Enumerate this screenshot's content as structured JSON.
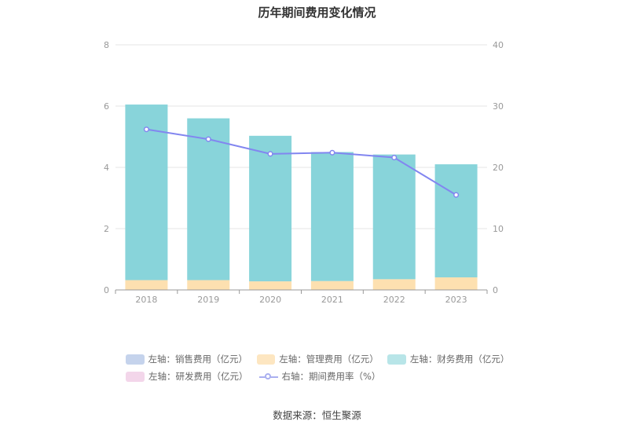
{
  "chart_data": {
    "type": "bar",
    "title": "历年期间费用变化情况",
    "categories": [
      "2018",
      "2019",
      "2020",
      "2021",
      "2022",
      "2023"
    ],
    "left_axis": {
      "min": 0,
      "max": 8,
      "ticks": [
        "0",
        "2",
        "4",
        "6",
        "8"
      ]
    },
    "right_axis": {
      "min": 0,
      "max": 40,
      "ticks": [
        "0",
        "10",
        "20",
        "30",
        "40"
      ]
    },
    "series": [
      {
        "name": "左轴：销售费用（亿元）",
        "axis": "left",
        "kind": "bar",
        "color": "#c5d3ec",
        "values": [
          0,
          0,
          0,
          0,
          0,
          0
        ]
      },
      {
        "name": "左轴：管理费用（亿元）",
        "axis": "left",
        "kind": "bar",
        "color": "#fde0b0",
        "values": [
          0.32,
          0.32,
          0.28,
          0.29,
          0.35,
          0.41
        ]
      },
      {
        "name": "左轴：财务费用（亿元）",
        "axis": "left",
        "kind": "bar",
        "color": "#88d4da",
        "values": [
          5.73,
          5.28,
          4.75,
          4.21,
          4.07,
          3.69
        ]
      },
      {
        "name": "左轴：研发费用（亿元）",
        "axis": "left",
        "kind": "bar",
        "color": "#f3d6ea",
        "values": [
          0,
          0,
          0,
          0,
          0,
          0
        ]
      },
      {
        "name": "右轴：期间费用率（%）",
        "axis": "right",
        "kind": "line",
        "color": "#8286f0",
        "values": [
          26.2,
          24.6,
          22.2,
          22.4,
          21.6,
          15.5
        ]
      }
    ],
    "grid": true,
    "legend_position": "bottom",
    "source": "数据来源：恒生聚源"
  }
}
